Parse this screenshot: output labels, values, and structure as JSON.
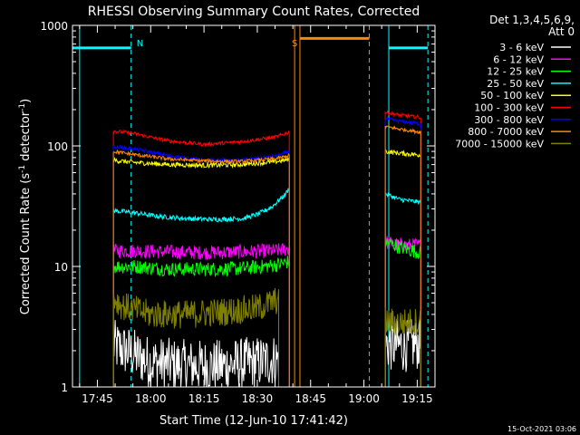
{
  "chart_data": {
    "type": "line",
    "title": "RHESSI Observing Summary Count Rates, Corrected",
    "xlabel": "Start Time (12-Jun-10 17:41:42)",
    "ylabel_main": "Corrected Count Rate (s",
    "ylabel_sup1": "-1",
    "ylabel_mid": " detector",
    "ylabel_sup2": "-1",
    "ylabel_end": ")",
    "yscale": "log",
    "ylim": [
      1,
      1000
    ],
    "xlim_minutes": [
      -2,
      100
    ],
    "x_ticks": [
      {
        "t": 5,
        "label": "17:45"
      },
      {
        "t": 20,
        "label": "18:00"
      },
      {
        "t": 35,
        "label": "18:15"
      },
      {
        "t": 50,
        "label": "18:30"
      },
      {
        "t": 65,
        "label": "18:45"
      },
      {
        "t": 80,
        "label": "19:00"
      },
      {
        "t": 95,
        "label": "19:15"
      }
    ],
    "y_ticks": [
      {
        "v": 1,
        "label": "1"
      },
      {
        "v": 10,
        "label": "10"
      },
      {
        "v": 100,
        "label": "100"
      },
      {
        "v": 1000,
        "label": "1000"
      }
    ],
    "legend": {
      "header1": "Det 1,3,4,5,6,9,",
      "header2": "Att 0",
      "placement": "right"
    },
    "series": [
      {
        "name": "3 - 6 keV",
        "color": "#ffffff",
        "segments": [
          {
            "x": [
              9.5,
              13,
              20,
              30,
              40,
              50,
              56
            ],
            "y": [
              2.2,
              2.0,
              1.6,
              1.5,
              1.5,
              1.6,
              1.7
            ]
          },
          {
            "x": [
              86,
              88,
              92,
              96
            ],
            "y": [
              2.3,
              2.2,
              2.2,
              2.3
            ]
          }
        ]
      },
      {
        "name": "6 - 12 keV",
        "color": "#ff00ff",
        "segments": [
          {
            "x": [
              9.5,
              15,
              25,
              35,
              45,
              55,
              59
            ],
            "y": [
              13.5,
              13.5,
              13.2,
              13.0,
              13.2,
              13.5,
              14
            ]
          },
          {
            "x": [
              86,
              90,
              96
            ],
            "y": [
              16,
              15,
              15
            ]
          }
        ]
      },
      {
        "name": "12 - 25 keV",
        "color": "#00ff00",
        "segments": [
          {
            "x": [
              9.5,
              15,
              25,
              35,
              45,
              55,
              59
            ],
            "y": [
              10,
              10,
              9.5,
              9.5,
              9.6,
              10.2,
              11
            ]
          },
          {
            "x": [
              86,
              90,
              96
            ],
            "y": [
              16,
              14.5,
              13
            ]
          }
        ]
      },
      {
        "name": "25 - 50 keV",
        "color": "#00ffff",
        "segments": [
          {
            "x": [
              9.5,
              15,
              22,
              30,
              38,
              46,
              50,
              54,
              58,
              59
            ],
            "y": [
              29,
              28,
              26,
              25,
              24.5,
              25,
              27,
              31,
              40,
              45
            ]
          },
          {
            "x": [
              86,
              90,
              96
            ],
            "y": [
              40,
              36,
              34
            ]
          }
        ]
      },
      {
        "name": "50 - 100 keV",
        "color": "#ffff00",
        "segments": [
          {
            "x": [
              9.5,
              15,
              25,
              35,
              45,
              55,
              59
            ],
            "y": [
              76,
              73,
              70,
              69,
              70,
              74,
              77
            ]
          },
          {
            "x": [
              86,
              90,
              96
            ],
            "y": [
              90,
              87,
              84
            ]
          }
        ]
      },
      {
        "name": "100 - 300 keV",
        "color": "#ff0000",
        "segments": [
          {
            "x": [
              9.5,
              15,
              25,
              35,
              45,
              55,
              59
            ],
            "y": [
              133,
              127,
              110,
              103,
              108,
              118,
              130
            ]
          },
          {
            "x": [
              86,
              90,
              96
            ],
            "y": [
              190,
              180,
              172
            ]
          }
        ]
      },
      {
        "name": "300 - 800 keV",
        "color": "#0000ff",
        "segments": [
          {
            "x": [
              9.5,
              15,
              25,
              35,
              45,
              55,
              59
            ],
            "y": [
              98,
              95,
              83,
              76,
              76,
              82,
              90
            ]
          },
          {
            "x": [
              86,
              90,
              96
            ],
            "y": [
              168,
              160,
              152
            ]
          }
        ]
      },
      {
        "name": "800 - 7000 keV",
        "color": "#ff8800",
        "segments": [
          {
            "x": [
              9.5,
              15,
              25,
              35,
              45,
              55,
              59
            ],
            "y": [
              90,
              85,
              78,
              75,
              74,
              78,
              83
            ]
          },
          {
            "x": [
              86,
              90,
              96
            ],
            "y": [
              145,
              138,
              130
            ]
          }
        ]
      },
      {
        "name": "7000 - 15000 keV",
        "color": "#808000",
        "segments": [
          {
            "x": [
              9.5,
              12,
              20,
              30,
              40,
              50,
              56
            ],
            "y": [
              5.5,
              4.7,
              4.0,
              4.0,
              4.2,
              4.5,
              5.3
            ]
          },
          {
            "x": [
              86,
              90,
              96
            ],
            "y": [
              3.5,
              3.4,
              3.5
            ]
          }
        ]
      }
    ],
    "annotations": [
      {
        "label": "N",
        "color": "#00ffff",
        "t": 14.5
      },
      {
        "label": "S",
        "color": "#ff8800",
        "t": 62
      }
    ],
    "event_bars": [
      {
        "kind": "night",
        "color": "#00ffff",
        "t_start": -2,
        "t_end": 14.5,
        "y": 650
      },
      {
        "kind": "saa",
        "color": "#ff8800",
        "t_start": 62,
        "t_end": 81.5,
        "y": 780
      },
      {
        "kind": "night",
        "color": "#00ffff",
        "t_start": 87,
        "t_end": 98,
        "y": 650
      }
    ],
    "vlines": [
      {
        "t": 0,
        "color": "#00ffff",
        "dashed": false
      },
      {
        "t": 14.5,
        "color": "#00ffff",
        "dashed": true
      },
      {
        "t": 60.5,
        "color": "#ff8800",
        "dashed": false
      },
      {
        "t": 62,
        "color": "#ff8800",
        "dashed": false
      },
      {
        "t": 81.5,
        "color": "#ff8800",
        "dashed": true
      },
      {
        "t": 87,
        "color": "#00ffff",
        "dashed": false
      },
      {
        "t": 98,
        "color": "#00ffff",
        "dashed": true
      }
    ],
    "grid": false
  },
  "footer": {
    "timestamp": "15-Oct-2021 03:06"
  }
}
